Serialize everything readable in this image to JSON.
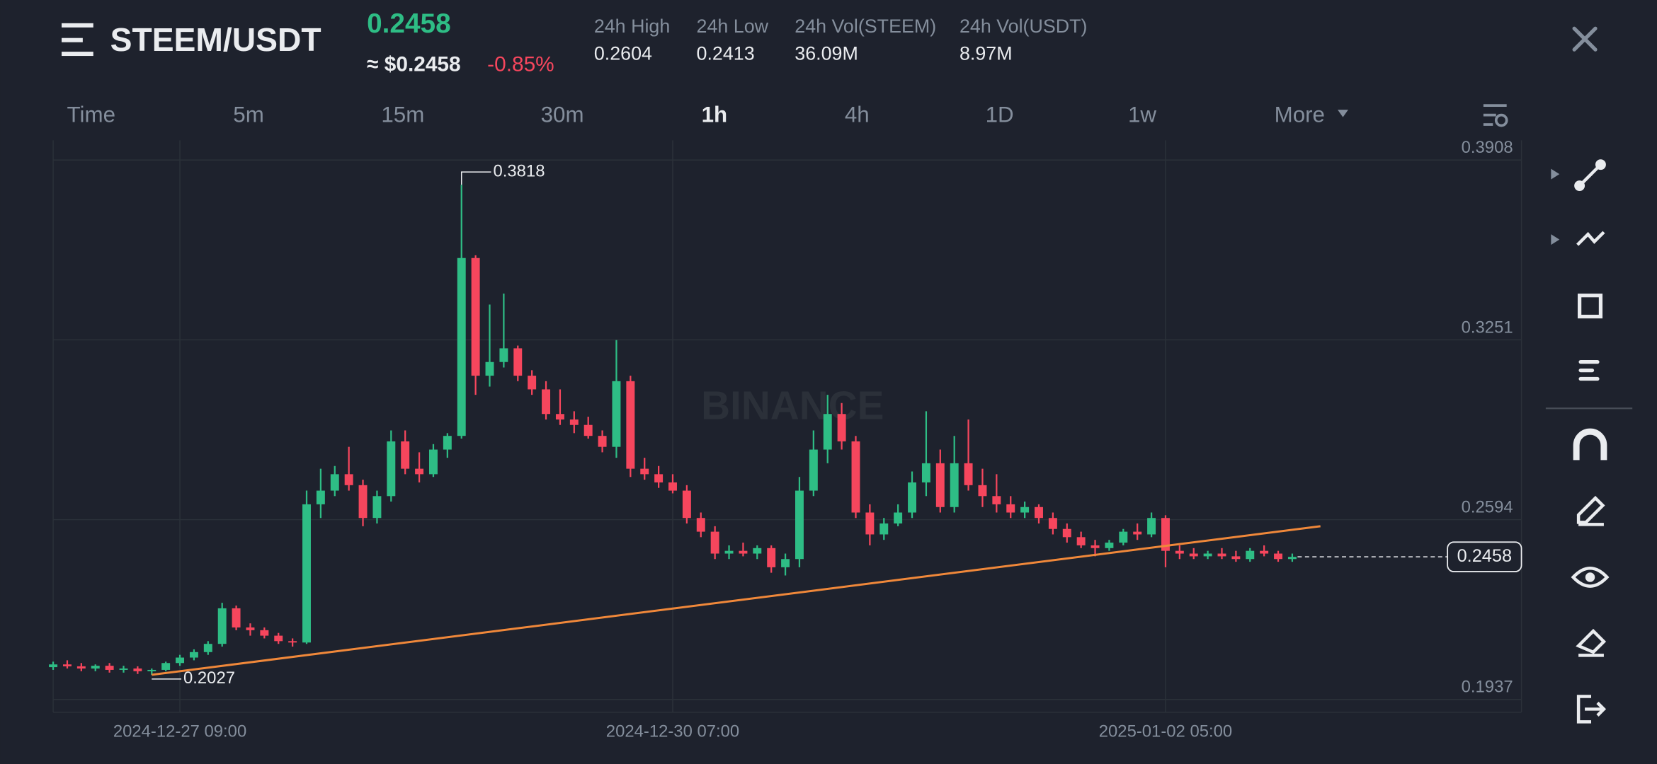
{
  "header": {
    "pair": "STEEM/USDT",
    "price": "0.2458",
    "price_usd": "≈ $0.2458",
    "change": "-0.85%",
    "stats": [
      {
        "label": "24h High",
        "value": "0.2604"
      },
      {
        "label": "24h Low",
        "value": "0.2413"
      },
      {
        "label": "24h Vol(STEEM)",
        "value": "36.09M"
      },
      {
        "label": "24h Vol(USDT)",
        "value": "8.97M"
      }
    ]
  },
  "tabs": {
    "items": [
      "Time",
      "5m",
      "15m",
      "30m",
      "1h",
      "4h",
      "1D",
      "1w",
      "More"
    ],
    "active": 4
  },
  "watermark": "BINANCE",
  "chart_data": {
    "type": "candlestick",
    "up_color": "#2ebd85",
    "down_color": "#f6465d",
    "categories": [
      "2024-12-26 15:00",
      "2024-12-26 17:00",
      "2024-12-26 19:00",
      "2024-12-26 21:00",
      "2024-12-26 23:00",
      "2024-12-27 01:00",
      "2024-12-27 03:00",
      "2024-12-27 05:00",
      "2024-12-27 07:00",
      "2024-12-27 09:00",
      "2024-12-27 11:00",
      "2024-12-27 13:00",
      "2024-12-27 15:00",
      "2024-12-27 17:00",
      "2024-12-27 19:00",
      "2024-12-27 21:00",
      "2024-12-27 23:00",
      "2024-12-28 01:00",
      "2024-12-28 03:00",
      "2024-12-28 05:00",
      "2024-12-28 07:00",
      "2024-12-28 09:00",
      "2024-12-28 11:00",
      "2024-12-28 13:00",
      "2024-12-28 15:00",
      "2024-12-28 17:00",
      "2024-12-28 19:00",
      "2024-12-28 21:00",
      "2024-12-28 23:00",
      "2024-12-29 01:00",
      "2024-12-29 03:00",
      "2024-12-29 05:00",
      "2024-12-29 07:00",
      "2024-12-29 09:00",
      "2024-12-29 11:00",
      "2024-12-29 13:00",
      "2024-12-29 15:00",
      "2024-12-29 17:00",
      "2024-12-29 19:00",
      "2024-12-29 21:00",
      "2024-12-29 23:00",
      "2024-12-30 01:00",
      "2024-12-30 03:00",
      "2024-12-30 05:00",
      "2024-12-30 07:00",
      "2024-12-30 09:00",
      "2024-12-30 11:00",
      "2024-12-30 13:00",
      "2024-12-30 15:00",
      "2024-12-30 17:00",
      "2024-12-30 19:00",
      "2024-12-30 21:00",
      "2024-12-30 23:00",
      "2024-12-31 01:00",
      "2024-12-31 03:00",
      "2024-12-31 05:00",
      "2024-12-31 07:00",
      "2024-12-31 09:00",
      "2024-12-31 11:00",
      "2024-12-31 13:00",
      "2024-12-31 15:00",
      "2024-12-31 17:00",
      "2024-12-31 19:00",
      "2024-12-31 21:00",
      "2024-12-31 23:00",
      "2025-01-01 01:00",
      "2025-01-01 03:00",
      "2025-01-01 05:00",
      "2025-01-01 07:00",
      "2025-01-01 09:00",
      "2025-01-01 11:00",
      "2025-01-01 13:00",
      "2025-01-01 15:00",
      "2025-01-01 17:00",
      "2025-01-01 19:00",
      "2025-01-01 21:00",
      "2025-01-01 23:00",
      "2025-01-02 01:00",
      "2025-01-02 03:00",
      "2025-01-02 05:00",
      "2025-01-02 07:00",
      "2025-01-02 09:00",
      "2025-01-02 11:00",
      "2025-01-02 13:00",
      "2025-01-02 15:00",
      "2025-01-02 17:00",
      "2025-01-02 19:00",
      "2025-01-02 21:00",
      "2025-01-02 23:00"
    ],
    "open": [
      0.2055,
      0.2065,
      0.2058,
      0.205,
      0.206,
      0.2045,
      0.205,
      0.204,
      0.2045,
      0.207,
      0.209,
      0.211,
      0.214,
      0.227,
      0.22,
      0.219,
      0.217,
      0.215,
      0.2145,
      0.265,
      0.27,
      0.276,
      0.272,
      0.26,
      0.268,
      0.288,
      0.278,
      0.276,
      0.285,
      0.29,
      0.355,
      0.312,
      0.317,
      0.322,
      0.312,
      0.307,
      0.298,
      0.296,
      0.294,
      0.29,
      0.286,
      0.31,
      0.278,
      0.276,
      0.273,
      0.27,
      0.26,
      0.255,
      0.247,
      0.248,
      0.247,
      0.249,
      0.242,
      0.245,
      0.27,
      0.285,
      0.298,
      0.288,
      0.262,
      0.254,
      0.258,
      0.262,
      0.273,
      0.28,
      0.264,
      0.28,
      0.272,
      0.268,
      0.265,
      0.262,
      0.264,
      0.26,
      0.256,
      0.253,
      0.25,
      0.249,
      0.251,
      0.255,
      0.254,
      0.26,
      0.248,
      0.247,
      0.246,
      0.247,
      0.246,
      0.245,
      0.248,
      0.247,
      0.245
    ],
    "high": [
      0.2075,
      0.208,
      0.207,
      0.2065,
      0.207,
      0.206,
      0.2058,
      0.205,
      0.2075,
      0.21,
      0.212,
      0.215,
      0.229,
      0.228,
      0.2215,
      0.22,
      0.218,
      0.216,
      0.27,
      0.278,
      0.279,
      0.286,
      0.274,
      0.27,
      0.292,
      0.292,
      0.284,
      0.287,
      0.291,
      0.3818,
      0.356,
      0.338,
      0.342,
      0.323,
      0.314,
      0.31,
      0.307,
      0.299,
      0.297,
      0.292,
      0.325,
      0.312,
      0.282,
      0.279,
      0.276,
      0.272,
      0.262,
      0.257,
      0.25,
      0.251,
      0.25,
      0.25,
      0.247,
      0.275,
      0.292,
      0.305,
      0.302,
      0.29,
      0.265,
      0.26,
      0.265,
      0.277,
      0.299,
      0.285,
      0.29,
      0.296,
      0.278,
      0.276,
      0.268,
      0.266,
      0.265,
      0.262,
      0.258,
      0.255,
      0.252,
      0.252,
      0.256,
      0.258,
      0.262,
      0.261,
      0.25,
      0.249,
      0.248,
      0.249,
      0.248,
      0.249,
      0.25,
      0.248,
      0.247
    ],
    "low": [
      0.2045,
      0.205,
      0.204,
      0.204,
      0.2035,
      0.2035,
      0.203,
      0.2027,
      0.204,
      0.206,
      0.208,
      0.21,
      0.213,
      0.219,
      0.217,
      0.216,
      0.214,
      0.213,
      0.214,
      0.26,
      0.268,
      0.27,
      0.257,
      0.258,
      0.266,
      0.276,
      0.273,
      0.275,
      0.282,
      0.289,
      0.305,
      0.308,
      0.315,
      0.31,
      0.305,
      0.296,
      0.294,
      0.291,
      0.289,
      0.284,
      0.282,
      0.275,
      0.274,
      0.271,
      0.269,
      0.258,
      0.253,
      0.245,
      0.245,
      0.246,
      0.245,
      0.24,
      0.239,
      0.242,
      0.268,
      0.28,
      0.285,
      0.26,
      0.25,
      0.252,
      0.257,
      0.26,
      0.268,
      0.262,
      0.262,
      0.27,
      0.264,
      0.262,
      0.26,
      0.26,
      0.258,
      0.254,
      0.251,
      0.249,
      0.246,
      0.248,
      0.25,
      0.252,
      0.253,
      0.242,
      0.245,
      0.245,
      0.245,
      0.245,
      0.244,
      0.244,
      0.246,
      0.244,
      0.244
    ],
    "close": [
      0.2065,
      0.2058,
      0.205,
      0.206,
      0.2045,
      0.205,
      0.204,
      0.2045,
      0.207,
      0.209,
      0.211,
      0.214,
      0.227,
      0.22,
      0.219,
      0.217,
      0.215,
      0.2145,
      0.265,
      0.27,
      0.276,
      0.272,
      0.26,
      0.268,
      0.288,
      0.278,
      0.276,
      0.285,
      0.29,
      0.355,
      0.312,
      0.317,
      0.322,
      0.312,
      0.307,
      0.298,
      0.296,
      0.294,
      0.29,
      0.286,
      0.31,
      0.278,
      0.276,
      0.273,
      0.27,
      0.26,
      0.255,
      0.247,
      0.248,
      0.247,
      0.249,
      0.242,
      0.245,
      0.27,
      0.285,
      0.298,
      0.288,
      0.262,
      0.254,
      0.258,
      0.262,
      0.273,
      0.28,
      0.264,
      0.28,
      0.272,
      0.268,
      0.265,
      0.262,
      0.264,
      0.26,
      0.256,
      0.253,
      0.25,
      0.249,
      0.251,
      0.255,
      0.254,
      0.26,
      0.248,
      0.247,
      0.246,
      0.247,
      0.246,
      0.245,
      0.248,
      0.247,
      0.245,
      0.2458
    ],
    "ylim": [
      0.189,
      0.398
    ],
    "yticks": [
      0.1937,
      0.2594,
      0.3251,
      0.3908
    ],
    "xticks": [
      "2024-12-27 09:00",
      "2024-12-30 07:00",
      "2025-01-02 05:00"
    ],
    "grid": true,
    "trendline": {
      "color": "#f0883a",
      "values": [
        0.2027,
        0.257
      ]
    }
  }
}
